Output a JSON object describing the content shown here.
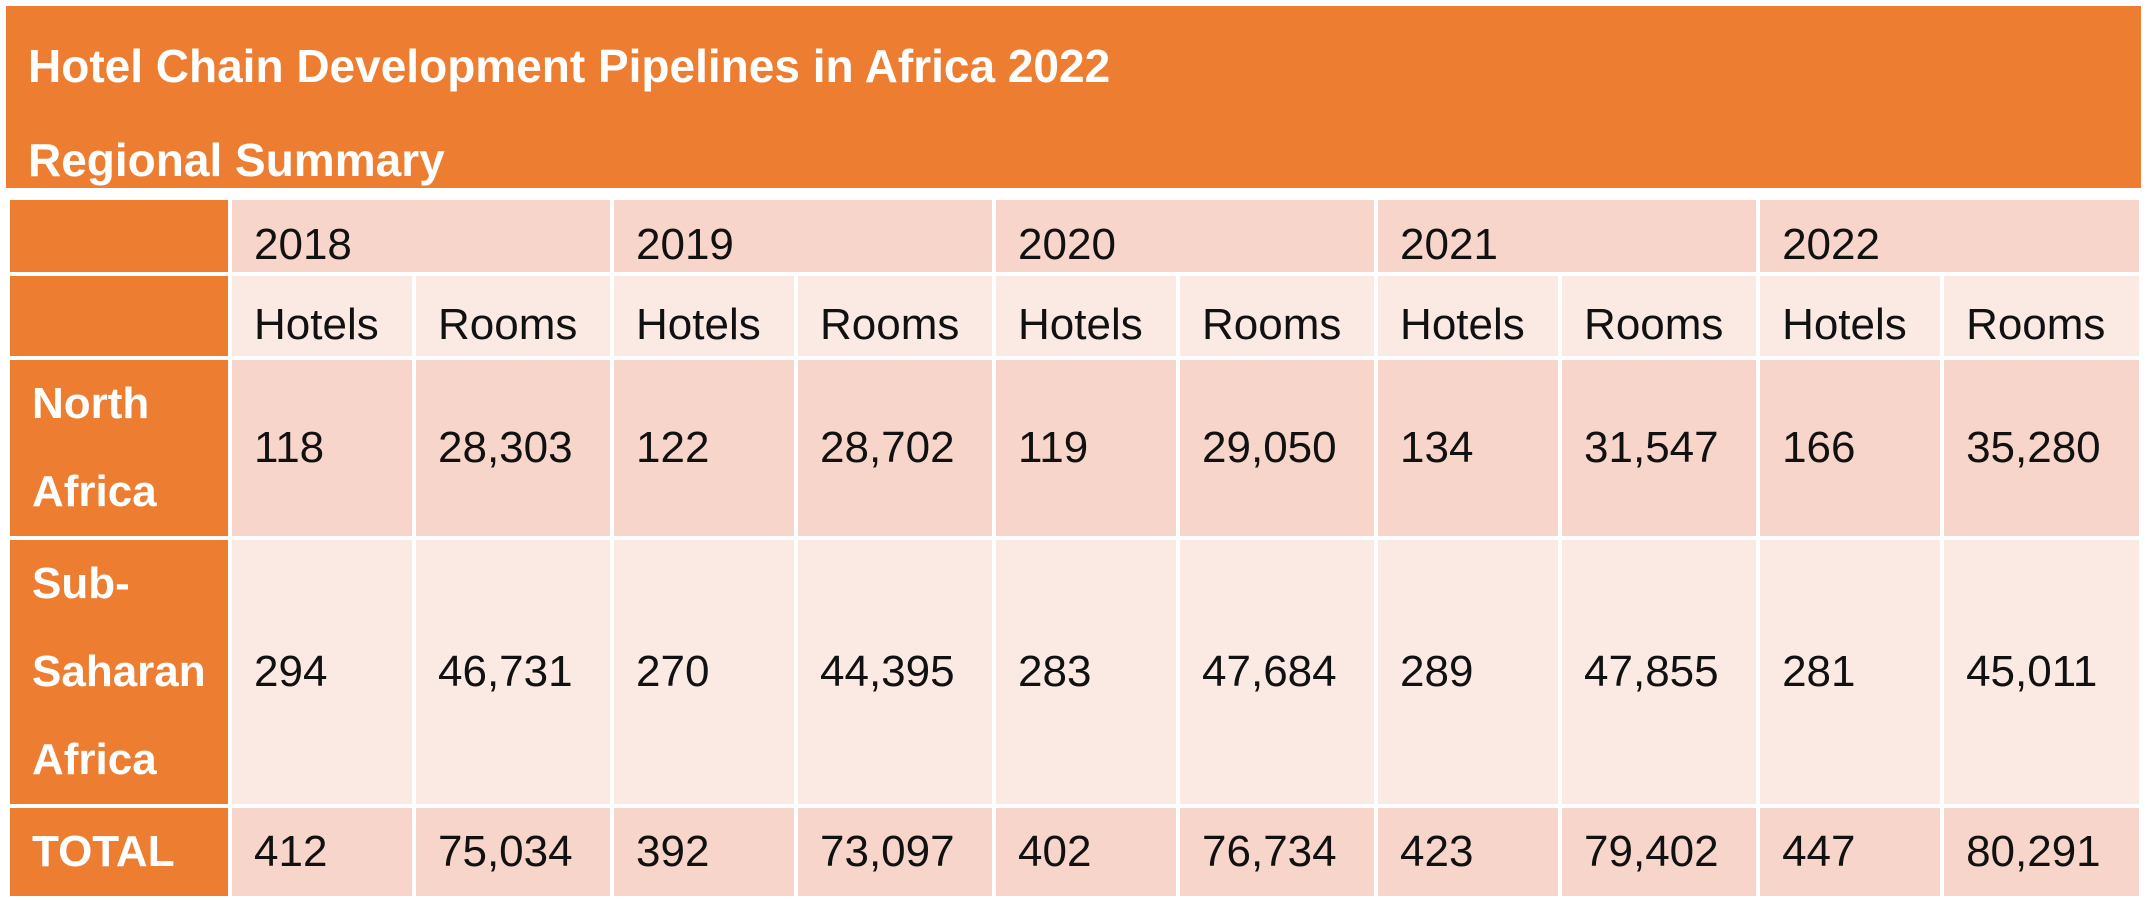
{
  "header": {
    "title": "Hotel Chain Development Pipelines in Africa 2022",
    "subtitle": "Regional Summary"
  },
  "table": {
    "years": [
      "2018",
      "2019",
      "2020",
      "2021",
      "2022"
    ],
    "subheaders": [
      "Hotels",
      "Rooms",
      "Hotels",
      "Rooms",
      "Hotels",
      "Rooms",
      "Hotels",
      "Rooms",
      "Hotels",
      "Rooms"
    ],
    "rows": [
      {
        "region": "North Africa",
        "values": [
          "118",
          "28,303",
          "122",
          "28,702",
          "119",
          "29,050",
          "134",
          "31,547",
          "166",
          "35,280"
        ]
      },
      {
        "region": "Sub-Saharan Africa",
        "values": [
          "294",
          "46,731",
          "270",
          "44,395",
          "283",
          "47,684",
          "289",
          "47,855",
          "281",
          "45,011"
        ]
      },
      {
        "region": "TOTAL",
        "values": [
          "412",
          "75,034",
          "392",
          "73,097",
          "402",
          "76,734",
          "423",
          "79,402",
          "447",
          "80,291"
        ]
      }
    ]
  },
  "colors": {
    "accent": "#ED7D31",
    "band_dark": "#F8D5CA",
    "band_light": "#FBE9E4"
  }
}
